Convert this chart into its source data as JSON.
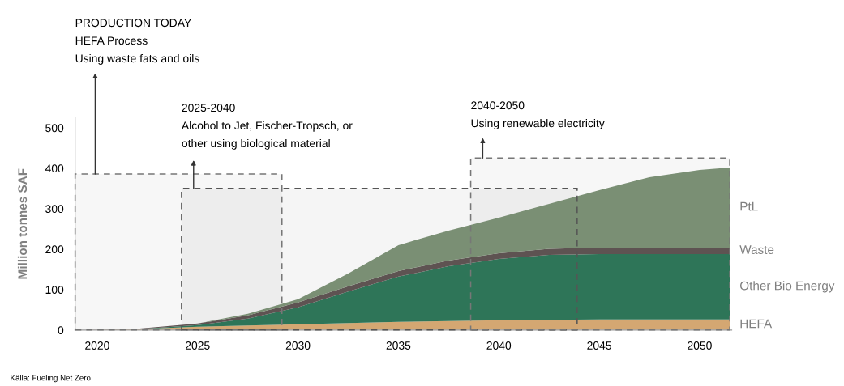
{
  "chart_data": {
    "type": "area",
    "stacked": true,
    "ylabel": "Million tonnes SAF",
    "x": [
      2019.5,
      2022,
      2025,
      2027.5,
      2030,
      2032.5,
      2035,
      2037.5,
      2040,
      2042.5,
      2045,
      2047.5,
      2050,
      2051.5
    ],
    "series": [
      {
        "name": "HEFA",
        "color": "#d4a772",
        "values": [
          0,
          2,
          8,
          11,
          14,
          17,
          20,
          22,
          24,
          25,
          26,
          26,
          26,
          26
        ]
      },
      {
        "name": "Other Bio Energy",
        "color": "#2e7558",
        "values": [
          0,
          0,
          4,
          17,
          42,
          78,
          112,
          136,
          152,
          161,
          162,
          162,
          162,
          162
        ]
      },
      {
        "name": "Waste",
        "color": "#5e5352",
        "values": [
          0,
          1,
          4,
          8,
          12,
          13,
          14,
          14,
          14,
          15,
          16,
          16,
          16,
          16
        ]
      },
      {
        "name": "PtL",
        "color": "#7a8f74",
        "values": [
          0,
          0,
          0,
          4,
          8,
          32,
          64,
          74,
          88,
          111,
          142,
          174,
          192,
          198
        ]
      }
    ],
    "xlim": [
      2018.9,
      2051.6
    ],
    "xticks": [
      2020,
      2025,
      2030,
      2035,
      2040,
      2045,
      2050
    ],
    "ylim": [
      0,
      525
    ],
    "yticks": [
      0,
      100,
      200,
      300,
      400,
      500
    ],
    "grid": false,
    "bands": [
      {
        "axis": "x",
        "from": 2018.9,
        "to": 2029.2,
        "label": "PRODUCTION TODAY\nHEFA Process\nUsing waste fats and oils",
        "color": "#777777"
      },
      {
        "axis": "x",
        "from": 2024.2,
        "to": 2043.9,
        "label": "2025-2040\nAlcohol to Jet, Fischer-Tropsch, or\nother using biological material",
        "color": "#555555"
      },
      {
        "axis": "x",
        "from": 2038.6,
        "to": 2051.5,
        "label": "2040-2050\nUsing renewable electricity",
        "color": "#777777"
      }
    ],
    "annotations": [
      "Källa: Fueling Net Zero"
    ]
  }
}
